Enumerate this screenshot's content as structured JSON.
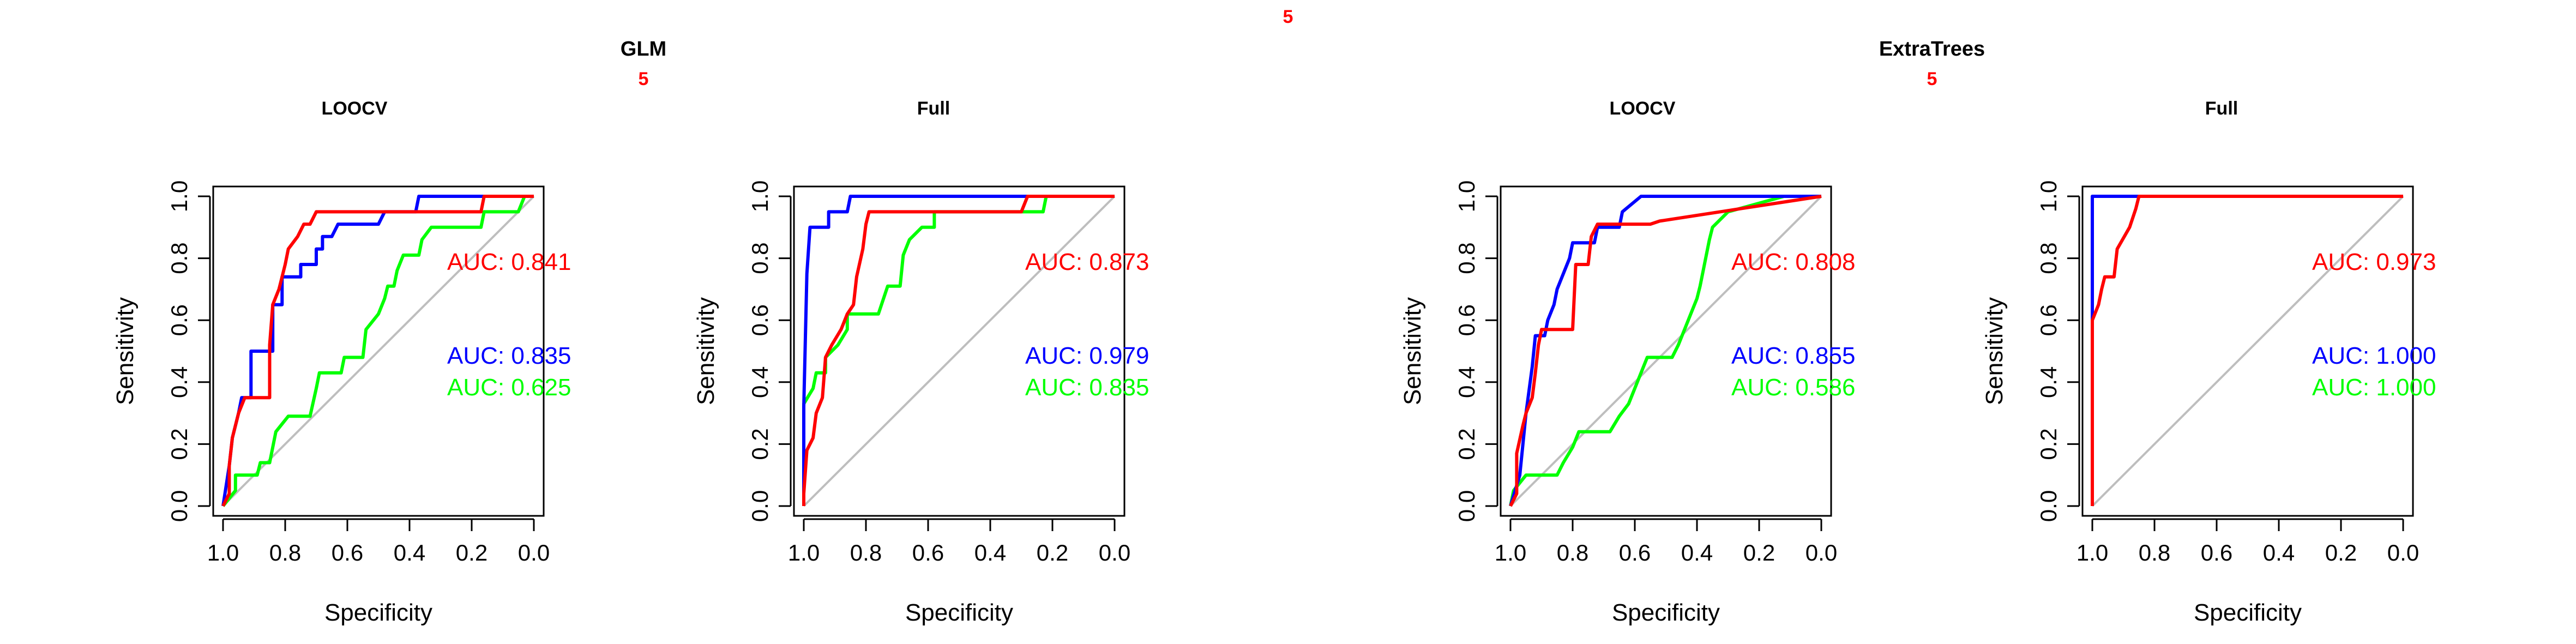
{
  "top_label": "5",
  "colors": {
    "red": "#ff0000",
    "blue": "#0000ff",
    "green": "#00ff00",
    "diagonal": "#bebebe",
    "axis": "#000000"
  },
  "groups": [
    {
      "title": "GLM",
      "sublabel": "5"
    },
    {
      "title": "ExtraTrees",
      "sublabel": "5"
    }
  ],
  "chart_data": [
    {
      "type": "line",
      "title": "LOOCV",
      "xlabel": "Specificity",
      "ylabel": "Sensitivity",
      "xlim": [
        1.0,
        0.0
      ],
      "ylim": [
        0.0,
        1.0
      ],
      "x_ticks": [
        "1.0",
        "0.8",
        "0.6",
        "0.4",
        "0.2",
        "0.0"
      ],
      "y_ticks": [
        "0.0",
        "0.2",
        "0.4",
        "0.6",
        "0.8",
        "1.0"
      ],
      "diagonal": true,
      "series": [
        {
          "color": "red",
          "auc_label": "AUC: 0.841",
          "points": [
            [
              1.0,
              0.0
            ],
            [
              0.98,
              0.04
            ],
            [
              0.98,
              0.13
            ],
            [
              0.97,
              0.22
            ],
            [
              0.95,
              0.3
            ],
            [
              0.93,
              0.35
            ],
            [
              0.85,
              0.35
            ],
            [
              0.85,
              0.52
            ],
            [
              0.84,
              0.65
            ],
            [
              0.82,
              0.7
            ],
            [
              0.8,
              0.78
            ],
            [
              0.79,
              0.83
            ],
            [
              0.76,
              0.87
            ],
            [
              0.74,
              0.91
            ],
            [
              0.72,
              0.91
            ],
            [
              0.7,
              0.95
            ],
            [
              0.17,
              0.95
            ],
            [
              0.16,
              1.0
            ],
            [
              0.0,
              1.0
            ]
          ]
        },
        {
          "color": "blue",
          "auc_label": "AUC: 0.835",
          "points": [
            [
              1.0,
              0.0
            ],
            [
              0.98,
              0.13
            ],
            [
              0.97,
              0.22
            ],
            [
              0.95,
              0.3
            ],
            [
              0.94,
              0.35
            ],
            [
              0.91,
              0.35
            ],
            [
              0.91,
              0.5
            ],
            [
              0.84,
              0.5
            ],
            [
              0.84,
              0.65
            ],
            [
              0.81,
              0.65
            ],
            [
              0.81,
              0.74
            ],
            [
              0.77,
              0.74
            ],
            [
              0.75,
              0.74
            ],
            [
              0.75,
              0.78
            ],
            [
              0.7,
              0.78
            ],
            [
              0.7,
              0.83
            ],
            [
              0.68,
              0.83
            ],
            [
              0.68,
              0.87
            ],
            [
              0.65,
              0.87
            ],
            [
              0.63,
              0.91
            ],
            [
              0.55,
              0.91
            ],
            [
              0.5,
              0.91
            ],
            [
              0.48,
              0.95
            ],
            [
              0.38,
              0.95
            ],
            [
              0.37,
              1.0
            ],
            [
              0.0,
              1.0
            ]
          ]
        },
        {
          "color": "green",
          "auc_label": "AUC: 0.625",
          "points": [
            [
              1.0,
              0.0
            ],
            [
              0.96,
              0.05
            ],
            [
              0.96,
              0.1
            ],
            [
              0.89,
              0.1
            ],
            [
              0.88,
              0.14
            ],
            [
              0.85,
              0.14
            ],
            [
              0.84,
              0.19
            ],
            [
              0.83,
              0.24
            ],
            [
              0.79,
              0.29
            ],
            [
              0.72,
              0.29
            ],
            [
              0.7,
              0.38
            ],
            [
              0.69,
              0.43
            ],
            [
              0.62,
              0.43
            ],
            [
              0.61,
              0.48
            ],
            [
              0.55,
              0.48
            ],
            [
              0.54,
              0.57
            ],
            [
              0.5,
              0.62
            ],
            [
              0.48,
              0.67
            ],
            [
              0.47,
              0.71
            ],
            [
              0.45,
              0.71
            ],
            [
              0.44,
              0.76
            ],
            [
              0.42,
              0.81
            ],
            [
              0.37,
              0.81
            ],
            [
              0.36,
              0.86
            ],
            [
              0.33,
              0.9
            ],
            [
              0.17,
              0.9
            ],
            [
              0.16,
              0.95
            ],
            [
              0.05,
              0.95
            ],
            [
              0.03,
              1.0
            ],
            [
              0.0,
              1.0
            ]
          ]
        }
      ]
    },
    {
      "type": "line",
      "title": "Full",
      "xlabel": "Specificity",
      "ylabel": "Sensitivity",
      "xlim": [
        1.0,
        0.0
      ],
      "ylim": [
        0.0,
        1.0
      ],
      "x_ticks": [
        "1.0",
        "0.8",
        "0.6",
        "0.4",
        "0.2",
        "0.0"
      ],
      "y_ticks": [
        "0.0",
        "0.2",
        "0.4",
        "0.6",
        "0.8",
        "1.0"
      ],
      "diagonal": true,
      "series": [
        {
          "color": "red",
          "auc_label": "AUC: 0.873",
          "points": [
            [
              1.0,
              0.0
            ],
            [
              1.0,
              0.04
            ],
            [
              0.99,
              0.18
            ],
            [
              0.97,
              0.22
            ],
            [
              0.96,
              0.3
            ],
            [
              0.94,
              0.35
            ],
            [
              0.93,
              0.48
            ],
            [
              0.91,
              0.52
            ],
            [
              0.88,
              0.57
            ],
            [
              0.86,
              0.62
            ],
            [
              0.84,
              0.65
            ],
            [
              0.83,
              0.74
            ],
            [
              0.81,
              0.83
            ],
            [
              0.8,
              0.91
            ],
            [
              0.79,
              0.95
            ],
            [
              0.3,
              0.95
            ],
            [
              0.28,
              1.0
            ],
            [
              0.0,
              1.0
            ]
          ]
        },
        {
          "color": "blue",
          "auc_label": "AUC: 0.979",
          "points": [
            [
              1.0,
              0.0
            ],
            [
              1.0,
              0.32
            ],
            [
              0.99,
              0.75
            ],
            [
              0.98,
              0.9
            ],
            [
              0.92,
              0.9
            ],
            [
              0.92,
              0.95
            ],
            [
              0.86,
              0.95
            ],
            [
              0.85,
              1.0
            ],
            [
              0.0,
              1.0
            ]
          ]
        },
        {
          "color": "green",
          "auc_label": "AUC: 0.835",
          "points": [
            [
              1.0,
              0.0
            ],
            [
              1.0,
              0.33
            ],
            [
              0.97,
              0.38
            ],
            [
              0.96,
              0.43
            ],
            [
              0.93,
              0.43
            ],
            [
              0.93,
              0.48
            ],
            [
              0.89,
              0.52
            ],
            [
              0.86,
              0.57
            ],
            [
              0.86,
              0.62
            ],
            [
              0.76,
              0.62
            ],
            [
              0.73,
              0.71
            ],
            [
              0.69,
              0.71
            ],
            [
              0.68,
              0.81
            ],
            [
              0.66,
              0.86
            ],
            [
              0.62,
              0.9
            ],
            [
              0.58,
              0.9
            ],
            [
              0.58,
              0.95
            ],
            [
              0.23,
              0.95
            ],
            [
              0.22,
              1.0
            ],
            [
              0.0,
              1.0
            ]
          ]
        }
      ]
    },
    {
      "type": "line",
      "title": "LOOCV",
      "xlabel": "Specificity",
      "ylabel": "Sensitivity",
      "xlim": [
        1.0,
        0.0
      ],
      "ylim": [
        0.0,
        1.0
      ],
      "x_ticks": [
        "1.0",
        "0.8",
        "0.6",
        "0.4",
        "0.2",
        "0.0"
      ],
      "y_ticks": [
        "0.0",
        "0.2",
        "0.4",
        "0.6",
        "0.8",
        "1.0"
      ],
      "diagonal": true,
      "series": [
        {
          "color": "red",
          "auc_label": "AUC: 0.808",
          "points": [
            [
              1.0,
              0.0
            ],
            [
              0.98,
              0.04
            ],
            [
              0.98,
              0.17
            ],
            [
              0.96,
              0.26
            ],
            [
              0.95,
              0.3
            ],
            [
              0.93,
              0.35
            ],
            [
              0.92,
              0.43
            ],
            [
              0.91,
              0.52
            ],
            [
              0.9,
              0.57
            ],
            [
              0.8,
              0.57
            ],
            [
              0.79,
              0.78
            ],
            [
              0.75,
              0.78
            ],
            [
              0.74,
              0.87
            ],
            [
              0.72,
              0.91
            ],
            [
              0.55,
              0.91
            ],
            [
              0.52,
              0.92
            ],
            [
              0.0,
              1.0
            ]
          ]
        },
        {
          "color": "blue",
          "auc_label": "AUC: 0.855",
          "points": [
            [
              1.0,
              0.0
            ],
            [
              0.97,
              0.1
            ],
            [
              0.96,
              0.2
            ],
            [
              0.95,
              0.3
            ],
            [
              0.93,
              0.45
            ],
            [
              0.92,
              0.55
            ],
            [
              0.89,
              0.55
            ],
            [
              0.88,
              0.6
            ],
            [
              0.86,
              0.65
            ],
            [
              0.85,
              0.7
            ],
            [
              0.83,
              0.75
            ],
            [
              0.81,
              0.8
            ],
            [
              0.8,
              0.85
            ],
            [
              0.73,
              0.85
            ],
            [
              0.72,
              0.9
            ],
            [
              0.65,
              0.9
            ],
            [
              0.64,
              0.95
            ],
            [
              0.58,
              1.0
            ],
            [
              0.0,
              1.0
            ]
          ]
        },
        {
          "color": "green",
          "auc_label": "AUC: 0.586",
          "points": [
            [
              1.0,
              0.0
            ],
            [
              0.99,
              0.05
            ],
            [
              0.95,
              0.1
            ],
            [
              0.85,
              0.1
            ],
            [
              0.83,
              0.14
            ],
            [
              0.8,
              0.19
            ],
            [
              0.78,
              0.24
            ],
            [
              0.68,
              0.24
            ],
            [
              0.65,
              0.29
            ],
            [
              0.62,
              0.33
            ],
            [
              0.6,
              0.38
            ],
            [
              0.58,
              0.43
            ],
            [
              0.56,
              0.48
            ],
            [
              0.48,
              0.48
            ],
            [
              0.46,
              0.52
            ],
            [
              0.44,
              0.57
            ],
            [
              0.42,
              0.62
            ],
            [
              0.4,
              0.67
            ],
            [
              0.39,
              0.71
            ],
            [
              0.38,
              0.76
            ],
            [
              0.37,
              0.81
            ],
            [
              0.36,
              0.86
            ],
            [
              0.35,
              0.9
            ],
            [
              0.3,
              0.95
            ],
            [
              0.12,
              1.0
            ],
            [
              0.0,
              1.0
            ]
          ]
        }
      ]
    },
    {
      "type": "line",
      "title": "Full",
      "xlabel": "Specificity",
      "ylabel": "Sensitivity",
      "xlim": [
        1.0,
        0.0
      ],
      "ylim": [
        0.0,
        1.0
      ],
      "x_ticks": [
        "1.0",
        "0.8",
        "0.6",
        "0.4",
        "0.2",
        "0.0"
      ],
      "y_ticks": [
        "0.0",
        "0.2",
        "0.4",
        "0.6",
        "0.8",
        "1.0"
      ],
      "diagonal": true,
      "series": [
        {
          "color": "red",
          "auc_label": "AUC: 0.973",
          "points": [
            [
              1.0,
              0.0
            ],
            [
              1.0,
              0.6
            ],
            [
              0.98,
              0.65
            ],
            [
              0.97,
              0.7
            ],
            [
              0.96,
              0.74
            ],
            [
              0.93,
              0.74
            ],
            [
              0.92,
              0.83
            ],
            [
              0.88,
              0.9
            ],
            [
              0.86,
              0.96
            ],
            [
              0.85,
              1.0
            ],
            [
              0.0,
              1.0
            ]
          ]
        },
        {
          "color": "blue",
          "auc_label": "AUC: 1.000",
          "points": [
            [
              1.0,
              0.0
            ],
            [
              1.0,
              1.0
            ],
            [
              0.0,
              1.0
            ]
          ]
        },
        {
          "color": "green",
          "auc_label": "AUC: 1.000",
          "points": [
            [
              1.0,
              0.0
            ],
            [
              1.0,
              1.0
            ],
            [
              0.0,
              1.0
            ]
          ]
        }
      ]
    }
  ]
}
